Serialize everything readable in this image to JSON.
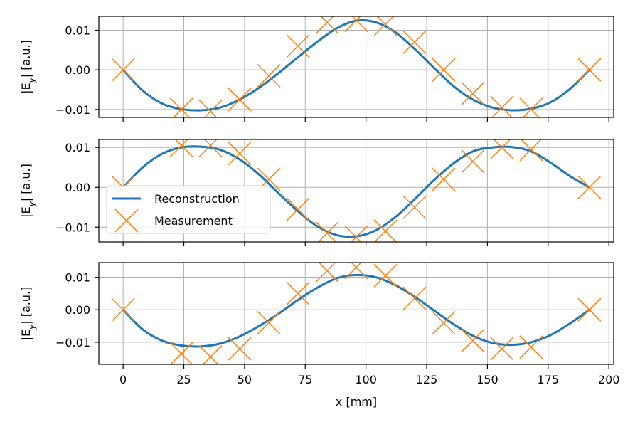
{
  "chart_data": [
    {
      "type": "line",
      "ylabel": "|E_y| [a.u.]",
      "xlabel": "",
      "xlim": [
        -10,
        202
      ],
      "ylim": [
        -0.012,
        0.0135
      ],
      "xticks": [
        0,
        25,
        50,
        75,
        100,
        125,
        150,
        175,
        200
      ],
      "xtick_labels": [
        "",
        "",
        "",
        "",
        "",
        "",
        "",
        "",
        ""
      ],
      "yticks": [
        -0.01,
        0.0,
        0.01
      ],
      "ytick_labels": [
        "−0.01",
        "0.00",
        "0.01"
      ],
      "grid": true,
      "legend": null,
      "series": [
        {
          "name": "Reconstruction",
          "kind": "line",
          "color": "#1f77b4",
          "x": [
            0,
            8,
            16,
            24,
            32,
            40,
            48,
            56,
            64,
            72,
            80,
            88,
            96,
            104,
            112,
            120,
            128,
            136,
            144,
            152,
            160,
            168,
            176,
            184,
            192
          ],
          "y": [
            0.0,
            -0.0052,
            -0.0085,
            -0.0099,
            -0.0102,
            -0.0095,
            -0.0075,
            -0.0045,
            -0.0008,
            0.0032,
            0.0071,
            0.0105,
            0.0124,
            0.012,
            0.0095,
            0.0053,
            0.0005,
            -0.0041,
            -0.0075,
            -0.0095,
            -0.0102,
            -0.0098,
            -0.0082,
            -0.0048,
            0.0
          ]
        },
        {
          "name": "Measurement",
          "kind": "scatter",
          "marker": "x",
          "color": "#ff7f0e",
          "x": [
            0,
            24,
            36,
            48,
            60,
            72,
            84,
            96,
            108,
            120,
            132,
            144,
            156,
            168,
            192
          ],
          "y": [
            0.0,
            -0.01,
            -0.0105,
            -0.0075,
            -0.0015,
            0.006,
            0.012,
            0.0125,
            0.0115,
            0.007,
            0.0,
            -0.006,
            -0.0095,
            -0.01,
            0.0
          ]
        }
      ]
    },
    {
      "type": "line",
      "ylabel": "|E_y| [a.u.]",
      "xlabel": "",
      "xlim": [
        -10,
        202
      ],
      "ylim": [
        -0.0137,
        0.012
      ],
      "xticks": [
        0,
        25,
        50,
        75,
        100,
        125,
        150,
        175,
        200
      ],
      "xtick_labels": [
        "",
        "",
        "",
        "",
        "",
        "",
        "",
        "",
        ""
      ],
      "yticks": [
        -0.01,
        0.0,
        0.01
      ],
      "ytick_labels": [
        "−0.01",
        "0.00",
        "0.01"
      ],
      "grid": true,
      "legend": {
        "position": "center-left",
        "entries": [
          "Reconstruction",
          "Measurement"
        ]
      },
      "series": [
        {
          "name": "Reconstruction",
          "kind": "line",
          "color": "#1f77b4",
          "x": [
            0,
            8,
            16,
            24,
            32,
            40,
            48,
            56,
            64,
            72,
            80,
            88,
            96,
            104,
            112,
            120,
            128,
            136,
            144,
            152,
            160,
            168,
            176,
            184,
            192
          ],
          "y": [
            0.0,
            0.005,
            0.0084,
            0.01,
            0.0102,
            0.0094,
            0.007,
            0.0032,
            -0.0015,
            -0.006,
            -0.0098,
            -0.012,
            -0.0123,
            -0.0108,
            -0.0075,
            -0.003,
            0.0018,
            0.006,
            0.009,
            0.01,
            0.0101,
            0.009,
            0.0062,
            0.0028,
            0.0
          ]
        },
        {
          "name": "Measurement",
          "kind": "scatter",
          "marker": "x",
          "color": "#ff7f0e",
          "x": [
            0,
            24,
            36,
            48,
            60,
            72,
            84,
            96,
            108,
            120,
            132,
            144,
            156,
            168,
            192
          ],
          "y": [
            0.0,
            0.0105,
            0.0105,
            0.0085,
            0.002,
            -0.0055,
            -0.0115,
            -0.0125,
            -0.011,
            -0.005,
            0.002,
            0.0065,
            0.01,
            0.0095,
            0.0
          ]
        }
      ]
    },
    {
      "type": "line",
      "ylabel": "|E_y| [a.u.]",
      "xlabel": "x [mm]",
      "xlim": [
        -10,
        202
      ],
      "ylim": [
        -0.0168,
        0.0145
      ],
      "xticks": [
        0,
        25,
        50,
        75,
        100,
        125,
        150,
        175,
        200
      ],
      "xtick_labels": [
        "0",
        "25",
        "50",
        "75",
        "100",
        "125",
        "150",
        "175",
        "200"
      ],
      "yticks": [
        -0.01,
        0.0,
        0.01
      ],
      "ytick_labels": [
        "−0.01",
        "0.00",
        "0.01"
      ],
      "grid": true,
      "legend": null,
      "series": [
        {
          "name": "Reconstruction",
          "kind": "line",
          "color": "#1f77b4",
          "x": [
            0,
            8,
            16,
            24,
            32,
            40,
            48,
            56,
            64,
            72,
            80,
            88,
            96,
            104,
            112,
            120,
            128,
            136,
            144,
            152,
            160,
            168,
            176,
            184,
            192
          ],
          "y": [
            0.0,
            -0.006,
            -0.0095,
            -0.011,
            -0.0113,
            -0.0104,
            -0.0082,
            -0.005,
            -0.0012,
            0.003,
            0.0068,
            0.0097,
            0.0107,
            0.01,
            0.0076,
            0.004,
            -0.0002,
            -0.0044,
            -0.008,
            -0.0102,
            -0.0108,
            -0.01,
            -0.0078,
            -0.0042,
            0.0
          ]
        },
        {
          "name": "Measurement",
          "kind": "scatter",
          "marker": "x",
          "color": "#ff7f0e",
          "x": [
            0,
            24,
            36,
            48,
            60,
            72,
            84,
            96,
            108,
            120,
            132,
            144,
            156,
            168,
            192
          ],
          "y": [
            0.0,
            -0.0135,
            -0.0145,
            -0.012,
            -0.004,
            0.005,
            0.012,
            0.013,
            0.0105,
            0.0035,
            -0.004,
            -0.0095,
            -0.012,
            -0.0115,
            0.0
          ]
        }
      ]
    }
  ]
}
